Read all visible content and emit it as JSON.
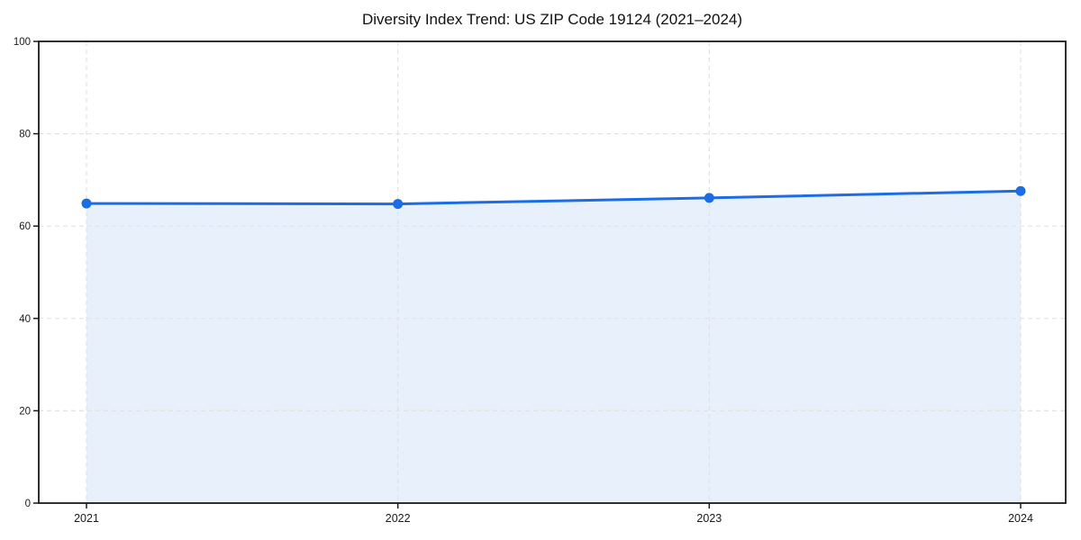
{
  "chart_data": {
    "type": "area",
    "title": "Diversity Index Trend: US ZIP Code 19124 (2021–2024)",
    "categories": [
      "2021",
      "2022",
      "2023",
      "2024"
    ],
    "series": [
      {
        "name": "Diversity Index",
        "values": [
          64.9,
          64.8,
          66.1,
          67.6
        ]
      }
    ],
    "xlabel": "",
    "ylabel": "",
    "ylim": [
      0,
      100
    ],
    "yticks": [
      0,
      20,
      40,
      60,
      80,
      100
    ],
    "grid": "dashed",
    "legend_position": "none",
    "marker": "circle"
  },
  "colors": {
    "accent": "#1b6ce6",
    "fill": "rgba(27,108,230,0.10)",
    "grid": "#e2e2e2",
    "axis": "#1a1a1a",
    "background": "#ffffff"
  }
}
